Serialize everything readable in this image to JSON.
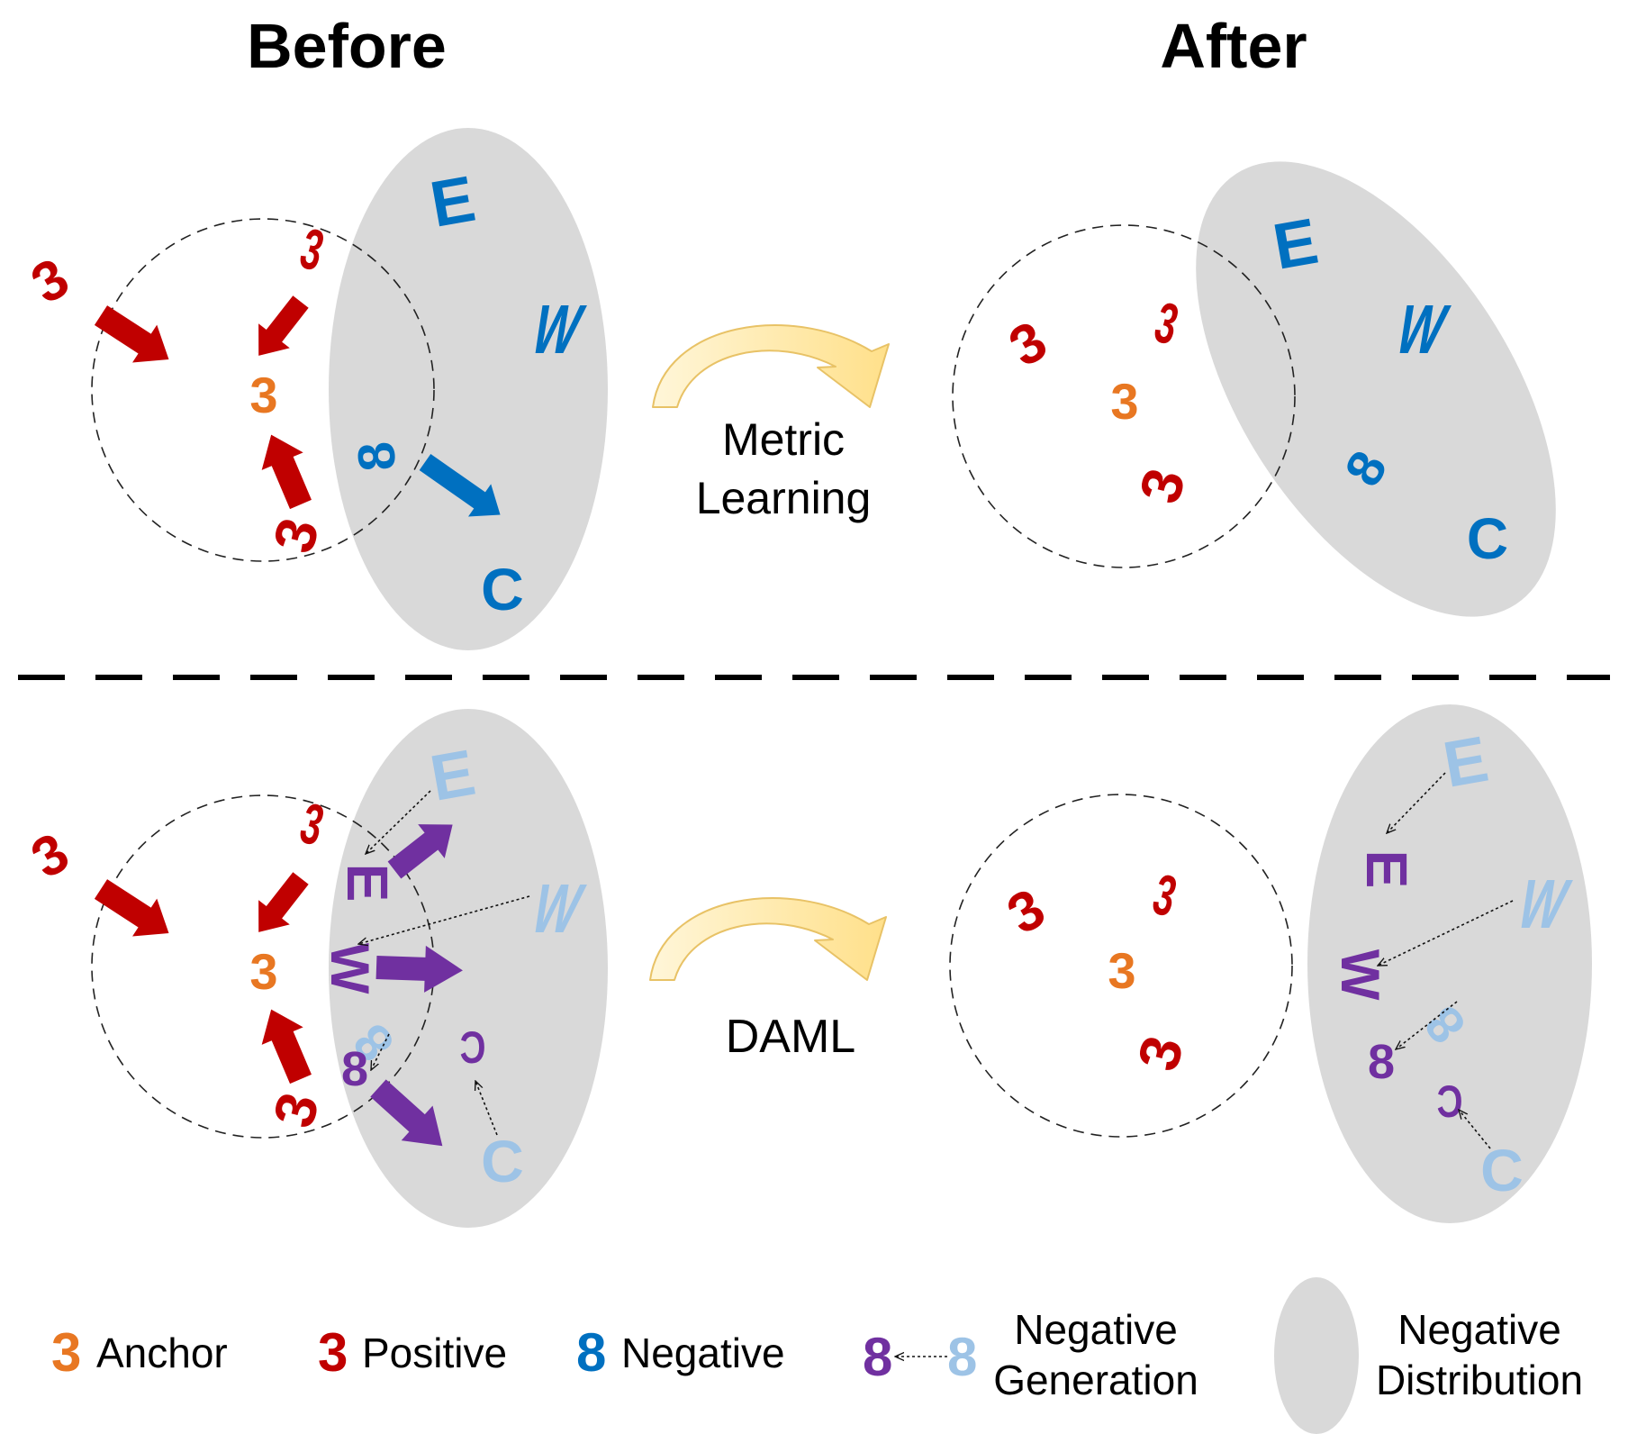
{
  "headers": {
    "before": "Before",
    "after": "After"
  },
  "middle": {
    "metric_line1": "Metric",
    "metric_line2": "Learning",
    "daml": "DAML"
  },
  "glyphs": {
    "three": "3",
    "eight": "8",
    "e": "E",
    "w": "W",
    "c": "C"
  },
  "legend": {
    "anchor": "Anchor",
    "positive": "Positive",
    "negative": "Negative",
    "neg_gen_line1": "Negative",
    "neg_gen_line2": "Generation",
    "neg_dist_line1": "Negative",
    "neg_dist_line2": "Distribution"
  },
  "colors": {
    "anchor": "#E87722",
    "positive": "#C00000",
    "negative": "#0070C0",
    "generated": "#7030A0",
    "light_negative": "#9DC3E6",
    "distribution": "#D9D9D9",
    "curve": "#FFE699"
  }
}
